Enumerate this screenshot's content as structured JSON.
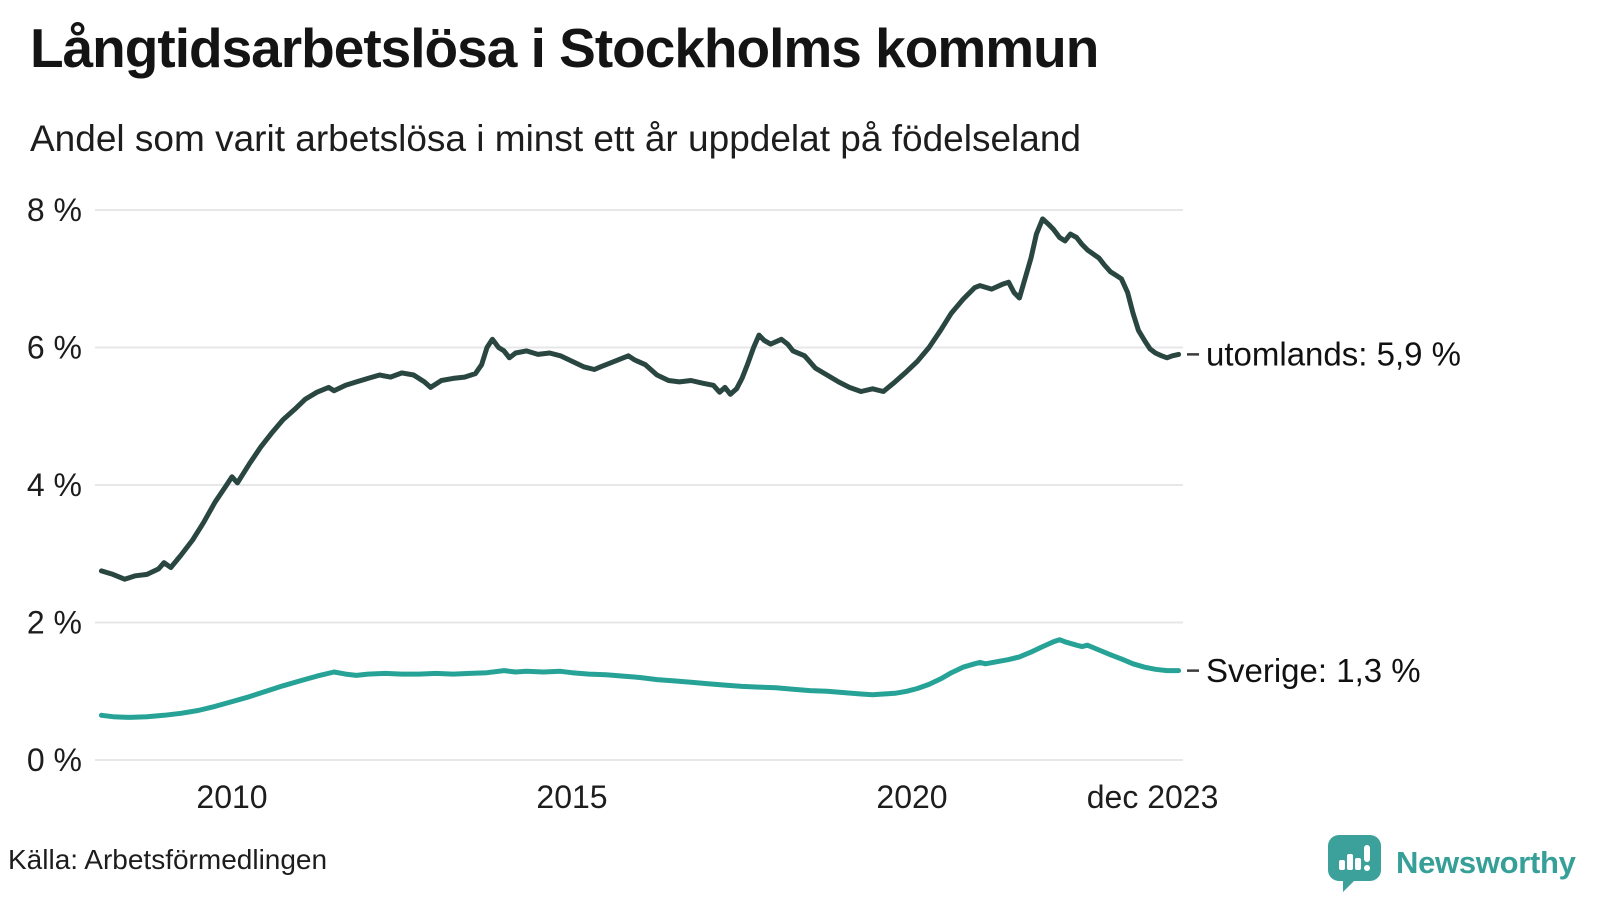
{
  "title": "Långtidsarbetslösa i Stockholms kommun",
  "subtitle": "Andel som varit arbetslösa i minst ett år uppdelat på födelseland",
  "source": "Källa: Arbetsförmedlingen",
  "branding": {
    "name": "Newsworthy",
    "logo_icon": "speech-bubble-bar-chart-exclamation",
    "color": "#369f98"
  },
  "colors": {
    "utomlands_line": "#2a4640",
    "sverige_line": "#26a396",
    "gridline": "#e7e7ea",
    "end_tick": "#3c3c3c",
    "text": "#1d1d1d"
  },
  "chart_data": {
    "type": "line",
    "title": "Långtidsarbetslösa i Stockholms kommun",
    "subtitle": "Andel som varit arbetslösa i minst ett år uppdelat på födelseland",
    "xlabel": "",
    "ylabel": "",
    "x_unit": "decimal year (monthly data)",
    "x_range": [
      2008.0,
      2023.92
    ],
    "ylim": [
      0,
      8
    ],
    "grid": "horizontal",
    "legend_position": "end-of-line-labels-right",
    "y_ticks": [
      {
        "value": 0,
        "label": "0 %"
      },
      {
        "value": 2,
        "label": "2 %"
      },
      {
        "value": 4,
        "label": "4 %"
      },
      {
        "value": 6,
        "label": "6 %"
      },
      {
        "value": 8,
        "label": "8 %"
      }
    ],
    "x_ticks": [
      {
        "year": 2010,
        "label": "2010"
      },
      {
        "year": 2015,
        "label": "2015"
      },
      {
        "year": 2020,
        "label": "2020"
      },
      {
        "year": 2023.92,
        "label": "dec 2023"
      }
    ],
    "series": [
      {
        "name": "utomlands",
        "end_label": "utomlands: 5,9 %",
        "final_value_text": "5,9 %",
        "color": "#2a4640",
        "points": [
          [
            2008.08,
            2.75
          ],
          [
            2008.25,
            2.7
          ],
          [
            2008.42,
            2.63
          ],
          [
            2008.58,
            2.68
          ],
          [
            2008.75,
            2.7
          ],
          [
            2008.92,
            2.78
          ],
          [
            2009.0,
            2.87
          ],
          [
            2009.1,
            2.8
          ],
          [
            2009.25,
            2.98
          ],
          [
            2009.42,
            3.2
          ],
          [
            2009.58,
            3.45
          ],
          [
            2009.75,
            3.75
          ],
          [
            2009.92,
            4.0
          ],
          [
            2010.0,
            4.12
          ],
          [
            2010.08,
            4.03
          ],
          [
            2010.25,
            4.3
          ],
          [
            2010.42,
            4.55
          ],
          [
            2010.58,
            4.75
          ],
          [
            2010.75,
            4.95
          ],
          [
            2010.92,
            5.1
          ],
          [
            2011.08,
            5.25
          ],
          [
            2011.25,
            5.35
          ],
          [
            2011.42,
            5.42
          ],
          [
            2011.5,
            5.37
          ],
          [
            2011.67,
            5.45
          ],
          [
            2011.83,
            5.5
          ],
          [
            2012.0,
            5.55
          ],
          [
            2012.17,
            5.6
          ],
          [
            2012.33,
            5.57
          ],
          [
            2012.5,
            5.63
          ],
          [
            2012.67,
            5.6
          ],
          [
            2012.83,
            5.5
          ],
          [
            2012.92,
            5.42
          ],
          [
            2013.08,
            5.52
          ],
          [
            2013.25,
            5.55
          ],
          [
            2013.42,
            5.57
          ],
          [
            2013.58,
            5.62
          ],
          [
            2013.67,
            5.75
          ],
          [
            2013.75,
            6.0
          ],
          [
            2013.83,
            6.12
          ],
          [
            2013.92,
            6.0
          ],
          [
            2014.0,
            5.95
          ],
          [
            2014.08,
            5.85
          ],
          [
            2014.17,
            5.92
          ],
          [
            2014.33,
            5.95
          ],
          [
            2014.5,
            5.9
          ],
          [
            2014.67,
            5.92
          ],
          [
            2014.83,
            5.88
          ],
          [
            2015.0,
            5.8
          ],
          [
            2015.17,
            5.72
          ],
          [
            2015.33,
            5.68
          ],
          [
            2015.42,
            5.72
          ],
          [
            2015.58,
            5.78
          ],
          [
            2015.83,
            5.88
          ],
          [
            2015.92,
            5.82
          ],
          [
            2016.08,
            5.75
          ],
          [
            2016.25,
            5.6
          ],
          [
            2016.42,
            5.52
          ],
          [
            2016.58,
            5.5
          ],
          [
            2016.75,
            5.52
          ],
          [
            2016.92,
            5.48
          ],
          [
            2017.08,
            5.45
          ],
          [
            2017.17,
            5.35
          ],
          [
            2017.25,
            5.42
          ],
          [
            2017.33,
            5.32
          ],
          [
            2017.42,
            5.4
          ],
          [
            2017.5,
            5.55
          ],
          [
            2017.58,
            5.75
          ],
          [
            2017.67,
            6.0
          ],
          [
            2017.75,
            6.18
          ],
          [
            2017.83,
            6.1
          ],
          [
            2017.92,
            6.05
          ],
          [
            2018.08,
            6.12
          ],
          [
            2018.17,
            6.05
          ],
          [
            2018.25,
            5.95
          ],
          [
            2018.42,
            5.88
          ],
          [
            2018.58,
            5.7
          ],
          [
            2018.75,
            5.6
          ],
          [
            2018.92,
            5.5
          ],
          [
            2019.08,
            5.42
          ],
          [
            2019.25,
            5.36
          ],
          [
            2019.42,
            5.4
          ],
          [
            2019.58,
            5.36
          ],
          [
            2019.75,
            5.5
          ],
          [
            2019.92,
            5.65
          ],
          [
            2020.08,
            5.8
          ],
          [
            2020.25,
            6.0
          ],
          [
            2020.42,
            6.25
          ],
          [
            2020.58,
            6.5
          ],
          [
            2020.75,
            6.7
          ],
          [
            2020.92,
            6.87
          ],
          [
            2021.0,
            6.9
          ],
          [
            2021.17,
            6.85
          ],
          [
            2021.33,
            6.92
          ],
          [
            2021.42,
            6.95
          ],
          [
            2021.5,
            6.8
          ],
          [
            2021.58,
            6.72
          ],
          [
            2021.75,
            7.3
          ],
          [
            2021.83,
            7.65
          ],
          [
            2021.92,
            7.87
          ],
          [
            2022.0,
            7.8
          ],
          [
            2022.08,
            7.72
          ],
          [
            2022.17,
            7.6
          ],
          [
            2022.25,
            7.55
          ],
          [
            2022.33,
            7.65
          ],
          [
            2022.42,
            7.6
          ],
          [
            2022.5,
            7.5
          ],
          [
            2022.58,
            7.42
          ],
          [
            2022.75,
            7.3
          ],
          [
            2022.83,
            7.2
          ],
          [
            2022.92,
            7.1
          ],
          [
            2023.0,
            7.05
          ],
          [
            2023.08,
            7.0
          ],
          [
            2023.17,
            6.8
          ],
          [
            2023.25,
            6.5
          ],
          [
            2023.33,
            6.25
          ],
          [
            2023.42,
            6.1
          ],
          [
            2023.5,
            5.98
          ],
          [
            2023.58,
            5.92
          ],
          [
            2023.67,
            5.88
          ],
          [
            2023.75,
            5.85
          ],
          [
            2023.83,
            5.88
          ],
          [
            2023.92,
            5.9
          ]
        ]
      },
      {
        "name": "Sverige",
        "end_label": "Sverige: 1,3 %",
        "final_value_text": "1,3 %",
        "color": "#26a396",
        "points": [
          [
            2008.08,
            0.65
          ],
          [
            2008.25,
            0.63
          ],
          [
            2008.5,
            0.62
          ],
          [
            2008.75,
            0.63
          ],
          [
            2009.0,
            0.65
          ],
          [
            2009.25,
            0.68
          ],
          [
            2009.5,
            0.72
          ],
          [
            2009.75,
            0.78
          ],
          [
            2010.0,
            0.85
          ],
          [
            2010.25,
            0.92
          ],
          [
            2010.5,
            1.0
          ],
          [
            2010.75,
            1.08
          ],
          [
            2011.0,
            1.15
          ],
          [
            2011.25,
            1.22
          ],
          [
            2011.5,
            1.28
          ],
          [
            2011.67,
            1.25
          ],
          [
            2011.83,
            1.23
          ],
          [
            2012.0,
            1.25
          ],
          [
            2012.25,
            1.26
          ],
          [
            2012.5,
            1.25
          ],
          [
            2012.75,
            1.25
          ],
          [
            2013.0,
            1.26
          ],
          [
            2013.25,
            1.25
          ],
          [
            2013.5,
            1.26
          ],
          [
            2013.75,
            1.27
          ],
          [
            2014.0,
            1.3
          ],
          [
            2014.17,
            1.28
          ],
          [
            2014.33,
            1.29
          ],
          [
            2014.58,
            1.28
          ],
          [
            2014.83,
            1.29
          ],
          [
            2015.0,
            1.27
          ],
          [
            2015.25,
            1.25
          ],
          [
            2015.5,
            1.24
          ],
          [
            2015.75,
            1.22
          ],
          [
            2016.0,
            1.2
          ],
          [
            2016.25,
            1.17
          ],
          [
            2016.5,
            1.15
          ],
          [
            2016.75,
            1.13
          ],
          [
            2017.0,
            1.11
          ],
          [
            2017.25,
            1.09
          ],
          [
            2017.5,
            1.07
          ],
          [
            2017.75,
            1.06
          ],
          [
            2018.0,
            1.05
          ],
          [
            2018.25,
            1.03
          ],
          [
            2018.5,
            1.01
          ],
          [
            2018.75,
            1.0
          ],
          [
            2019.0,
            0.98
          ],
          [
            2019.25,
            0.96
          ],
          [
            2019.42,
            0.95
          ],
          [
            2019.58,
            0.96
          ],
          [
            2019.75,
            0.97
          ],
          [
            2019.92,
            1.0
          ],
          [
            2020.08,
            1.04
          ],
          [
            2020.25,
            1.1
          ],
          [
            2020.42,
            1.18
          ],
          [
            2020.58,
            1.27
          ],
          [
            2020.75,
            1.35
          ],
          [
            2020.92,
            1.4
          ],
          [
            2021.0,
            1.42
          ],
          [
            2021.08,
            1.4
          ],
          [
            2021.25,
            1.43
          ],
          [
            2021.42,
            1.46
          ],
          [
            2021.58,
            1.5
          ],
          [
            2021.75,
            1.57
          ],
          [
            2021.92,
            1.65
          ],
          [
            2022.08,
            1.72
          ],
          [
            2022.17,
            1.75
          ],
          [
            2022.25,
            1.72
          ],
          [
            2022.42,
            1.67
          ],
          [
            2022.5,
            1.65
          ],
          [
            2022.58,
            1.67
          ],
          [
            2022.75,
            1.6
          ],
          [
            2022.92,
            1.53
          ],
          [
            2023.08,
            1.47
          ],
          [
            2023.25,
            1.4
          ],
          [
            2023.42,
            1.35
          ],
          [
            2023.58,
            1.32
          ],
          [
            2023.75,
            1.3
          ],
          [
            2023.92,
            1.3
          ]
        ]
      }
    ]
  }
}
